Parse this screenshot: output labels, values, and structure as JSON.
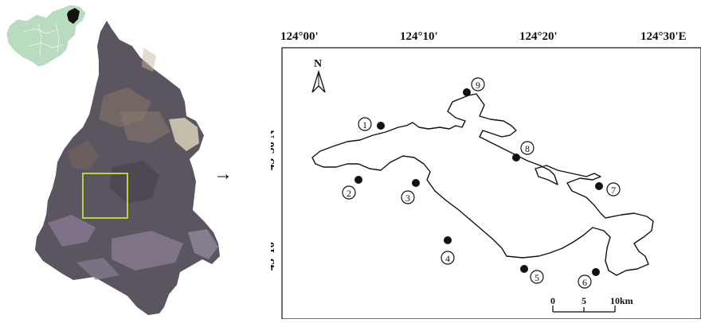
{
  "inset_map": {
    "highlight_color": "#000000",
    "country_fill": "#b9dcc0",
    "region_fill": "#5b5560",
    "selection_box_color": "#b6d53a"
  },
  "arrow": "→",
  "study_map": {
    "top_ticks": [
      "124°00'",
      "124°10'",
      "124°20'",
      "124°30'E"
    ],
    "left_ticks": [
      "45°30'N",
      "45°10'"
    ],
    "north_label": "N",
    "scale_labels": [
      "0",
      "5",
      "10km"
    ],
    "sites": [
      "1",
      "2",
      "3",
      "4",
      "5",
      "6",
      "7",
      "8",
      "9"
    ]
  }
}
